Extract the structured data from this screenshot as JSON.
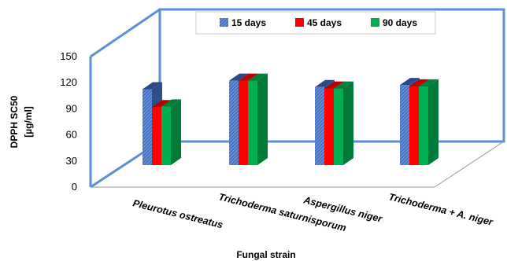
{
  "chart_data": {
    "type": "bar",
    "categories": [
      "Pleurotus ostreatus",
      "Trichoderma saturnisporum",
      "Aspergillus niger",
      "Trichoderma + A. niger"
    ],
    "series": [
      {
        "name": "15 days",
        "values": [
          106,
          118,
          109,
          112
        ],
        "color": "#4472C4",
        "pattern": "diagonal-hatch"
      },
      {
        "name": "45 days",
        "values": [
          81,
          118,
          107,
          110
        ],
        "color": "#FF0000"
      },
      {
        "name": "90 days",
        "values": [
          82,
          118,
          107,
          110
        ],
        "color": "#00B050"
      }
    ],
    "ylim": [
      0,
      150
    ],
    "yticks": [
      "0",
      "30",
      "60",
      "90",
      "120",
      "150"
    ],
    "ylabel_line1": "DPPH SC50",
    "ylabel_line2": "[µg/ml]",
    "xlabel": "Fungal strain",
    "legend_position": "top-center",
    "grid": false,
    "frame_color": "#5B8FD6"
  }
}
